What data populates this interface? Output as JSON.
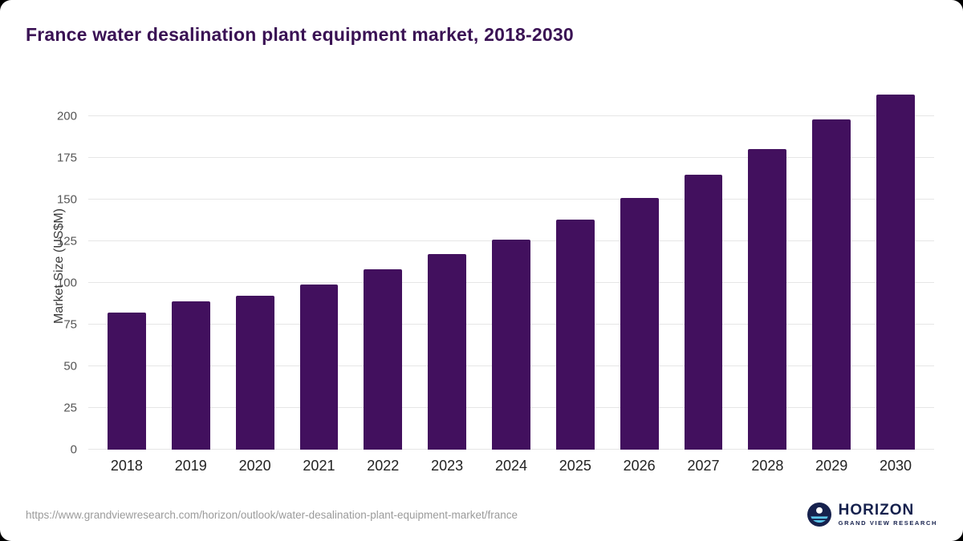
{
  "title": "France water desalination plant equipment market, 2018-2030",
  "colors": {
    "bar": "#42105e",
    "title": "#3a1254",
    "grid": "#e6e6e6",
    "logo_navy": "#16214d",
    "logo_cyan": "#5bc6ea"
  },
  "chart_data": {
    "type": "bar",
    "categories": [
      "2018",
      "2019",
      "2020",
      "2021",
      "2022",
      "2023",
      "2024",
      "2025",
      "2026",
      "2027",
      "2028",
      "2029",
      "2030"
    ],
    "values": [
      82,
      89,
      92,
      99,
      108,
      117,
      126,
      138,
      151,
      165,
      180,
      198,
      213
    ],
    "title": "France water desalination plant equipment market, 2018-2030",
    "xlabel": "",
    "ylabel": "Market Size (US$M)",
    "ylim": [
      0,
      220
    ],
    "yticks": [
      0,
      25,
      50,
      75,
      100,
      125,
      150,
      175,
      200
    ],
    "grid": true,
    "legend": false
  },
  "footer": {
    "source_url": "https://www.grandviewresearch.com/horizon/outlook/water-desalination-plant-equipment-market/france",
    "logo_title": "HORIZON",
    "logo_subtitle": "GRAND VIEW RESEARCH"
  }
}
